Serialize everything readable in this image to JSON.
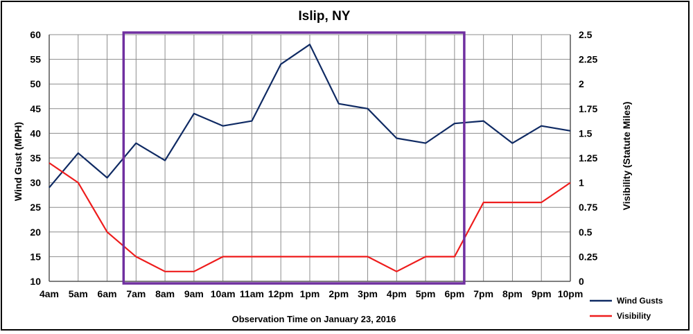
{
  "chart_data": {
    "type": "line",
    "title": "Islip, NY",
    "xlabel": "Observation Time on January 23, 2016",
    "ylabel_left": "Wind Gust (MPH)",
    "ylabel_right": "Visibility (Statute Miles)",
    "categories": [
      "4am",
      "5am",
      "6am",
      "7am",
      "8am",
      "9am",
      "10am",
      "11am",
      "12pm",
      "1pm",
      "2pm",
      "3pm",
      "4pm",
      "5pm",
      "6pm",
      "7pm",
      "8pm",
      "9pm",
      "10pm"
    ],
    "ylim_left": [
      10,
      60
    ],
    "ylim_right": [
      0,
      2.5
    ],
    "yticks_left": [
      "10",
      "15",
      "20",
      "25",
      "30",
      "35",
      "40",
      "45",
      "50",
      "55",
      "60"
    ],
    "yticks_right": [
      "0",
      "0.25",
      "0.5",
      "0.75",
      "1",
      "1.25",
      "1.5",
      "1.75",
      "2",
      "2.25",
      "2.5"
    ],
    "grid": true,
    "legend_position": "right-bottom",
    "series": [
      {
        "name": "Wind Gusts",
        "axis": "left",
        "color": "#0f2a63",
        "values": [
          29,
          36,
          31,
          38,
          34.5,
          44,
          41.5,
          42.5,
          54,
          58,
          46,
          45,
          39,
          38,
          42,
          42.5,
          38,
          41.5,
          40.5
        ]
      },
      {
        "name": "Visibility",
        "axis": "right",
        "color": "#ee1c1c",
        "values": [
          1.2,
          1.0,
          0.5,
          0.25,
          0.1,
          0.1,
          0.25,
          0.25,
          0.25,
          0.25,
          0.25,
          0.25,
          0.1,
          0.25,
          0.25,
          0.8,
          0.8,
          0.8,
          1.0
        ]
      }
    ],
    "highlight": {
      "from_category": "7am",
      "to_category": "6pm",
      "color": "#7030a0"
    }
  }
}
